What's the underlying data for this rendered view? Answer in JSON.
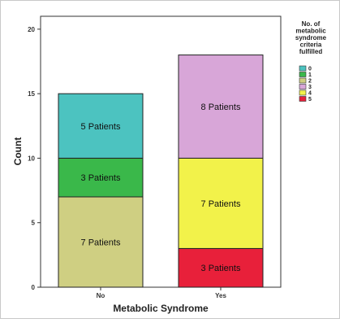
{
  "chart_data": {
    "type": "bar",
    "stacked": true,
    "xlabel": "Metabolic Syndrome",
    "ylabel": "Count",
    "categories": [
      "No",
      "Yes"
    ],
    "ylim": [
      0,
      21
    ],
    "yticks": [
      0,
      5,
      10,
      15,
      20
    ],
    "grid": false,
    "legend": {
      "title_lines": [
        "No. of",
        "metabolic",
        "syndrome",
        "criteria",
        "fulfilled"
      ],
      "placement": "top-right",
      "entries": [
        {
          "label": "0",
          "color": "#4cc3c0"
        },
        {
          "label": "1",
          "color": "#3ab84a"
        },
        {
          "label": "2",
          "color": "#cfcf82"
        },
        {
          "label": "3",
          "color": "#d8a6d8"
        },
        {
          "label": "4",
          "color": "#f2f24a"
        },
        {
          "label": "5",
          "color": "#e8203a"
        }
      ]
    },
    "segments": [
      {
        "category": "No",
        "criteria": "2",
        "value": 7,
        "label": "7 Patients",
        "color": "#cfcf82"
      },
      {
        "category": "No",
        "criteria": "1",
        "value": 3,
        "label": "3 Patients",
        "color": "#3ab84a"
      },
      {
        "category": "No",
        "criteria": "0",
        "value": 5,
        "label": "5 Patients",
        "color": "#4cc3c0"
      },
      {
        "category": "Yes",
        "criteria": "5",
        "value": 3,
        "label": "3 Patients",
        "color": "#e8203a"
      },
      {
        "category": "Yes",
        "criteria": "4",
        "value": 7,
        "label": "7 Patients",
        "color": "#f2f24a"
      },
      {
        "category": "Yes",
        "criteria": "3",
        "value": 8,
        "label": "8 Patients",
        "color": "#d8a6d8"
      }
    ]
  }
}
